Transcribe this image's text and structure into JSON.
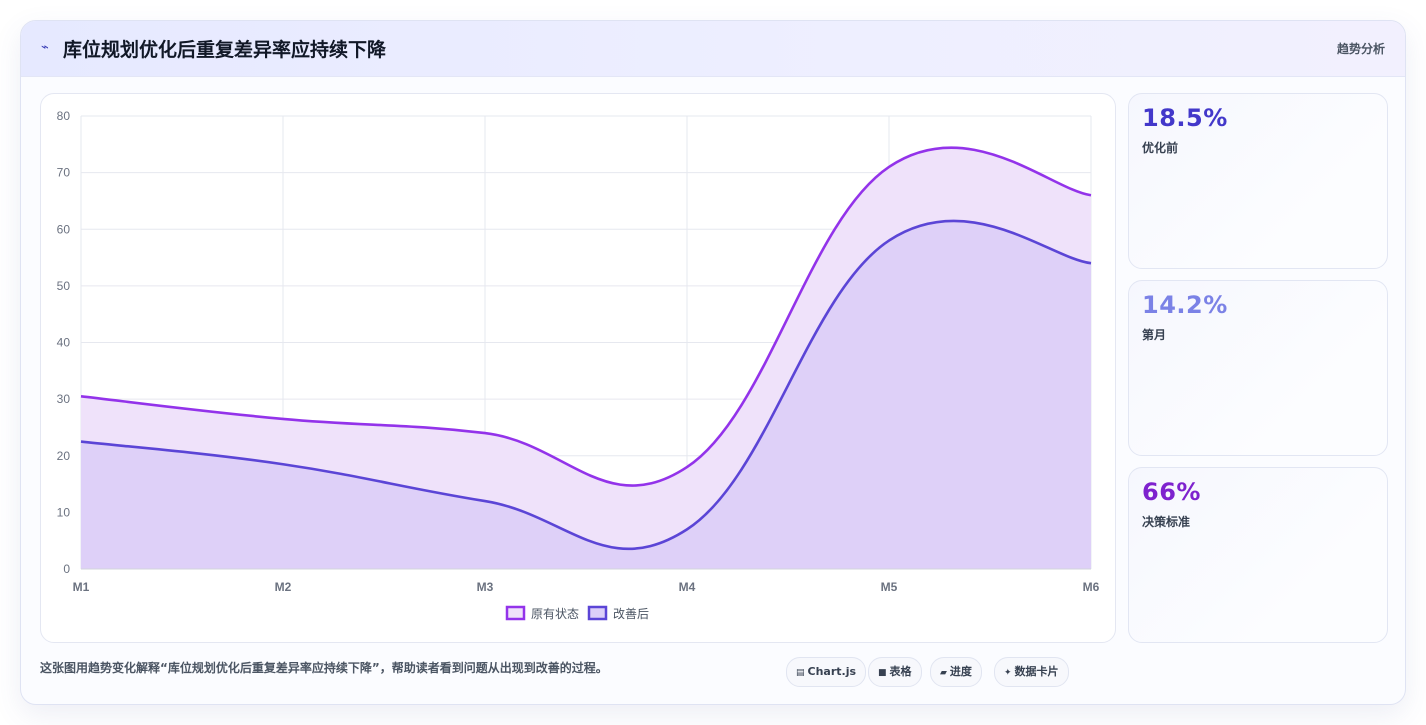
{
  "header": {
    "title": "库位规划优化后重复差异率应持续下降",
    "tag": "趋势分析"
  },
  "stats": [
    {
      "value": "18.5%",
      "label": "优化前",
      "color": "#4338ca"
    },
    {
      "value": "14.2%",
      "label": "第月",
      "color": "#7b82e6"
    },
    {
      "value": "66%",
      "label": "决策标准",
      "color": "#7e22ce"
    }
  ],
  "footer": {
    "description": "这张图用趋势变化解释“库位规划优化后重复差异率应持续下降”，帮助读者看到问题从出现到改善的过程。",
    "chips": [
      {
        "icon": "chart-icon",
        "glyph": "▤",
        "label": "Chart.js"
      },
      {
        "icon": "table-icon",
        "glyph": "■",
        "label": "表格"
      },
      {
        "icon": "progress-icon",
        "glyph": "▰",
        "label": "进度"
      },
      {
        "icon": "sparkle-icon",
        "glyph": "✦",
        "label": "数据卡片"
      }
    ]
  },
  "chart_data": {
    "type": "area",
    "categories": [
      "M1",
      "M2",
      "M3",
      "M4",
      "M5",
      "M6"
    ],
    "series": [
      {
        "name": "原有状态",
        "values": [
          30.5,
          26.5,
          24,
          18,
          71,
          66
        ],
        "color": "#9333ea",
        "fill": "#efe2fa"
      },
      {
        "name": "改善后",
        "values": [
          22.5,
          18.5,
          12,
          7,
          58,
          54
        ],
        "color": "#5b45d6",
        "fill": "#dccff8"
      }
    ],
    "ylim": [
      0,
      80
    ],
    "yticks": [
      0,
      10,
      20,
      30,
      40,
      50,
      60,
      70,
      80
    ],
    "grid": true,
    "legend": "bottom"
  }
}
